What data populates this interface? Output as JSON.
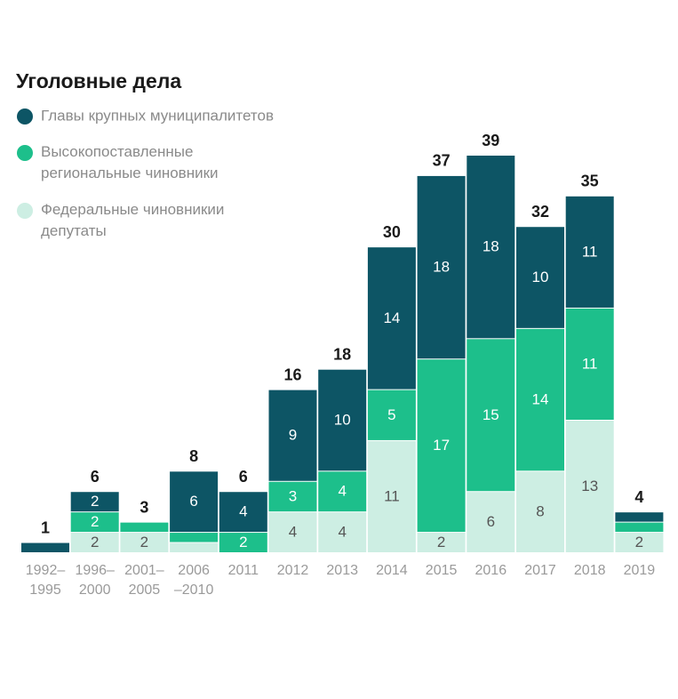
{
  "chart_data": {
    "type": "stacked_bar",
    "title": "Уголовные дела",
    "categories": [
      "1992–\n1995",
      "1996–\n2000",
      "2001–\n2005",
      "2006\n–2010",
      "2011",
      "2012",
      "2013",
      "2014",
      "2015",
      "2016",
      "2017",
      "2018",
      "2019"
    ],
    "series": [
      {
        "name": "Федеральные чиновникии\nдепутаты",
        "color": "#cdeee3",
        "values": [
          0,
          2,
          2,
          1,
          0,
          4,
          4,
          11,
          2,
          6,
          8,
          13,
          2
        ],
        "value_labels": [
          null,
          "2",
          "2",
          null,
          null,
          "4",
          "4",
          "11",
          "2",
          "6",
          "8",
          "13",
          "2"
        ]
      },
      {
        "name": "Высокопоставленные\nрегиональные чиновники",
        "color": "#1dbf8b",
        "values": [
          0,
          2,
          1,
          1,
          2,
          3,
          4,
          5,
          17,
          15,
          14,
          11,
          1
        ],
        "value_labels": [
          null,
          "2",
          null,
          null,
          "2",
          "3",
          "4",
          "5",
          "17",
          "15",
          "14",
          "11",
          null
        ]
      },
      {
        "name": "Главы крупных муниципалитетов",
        "color": "#0d5565",
        "values": [
          1,
          2,
          0,
          6,
          4,
          9,
          10,
          14,
          18,
          18,
          10,
          11,
          1
        ],
        "value_labels": [
          null,
          "2",
          null,
          "6",
          "4",
          "9",
          "10",
          "14",
          "18",
          "18",
          "10",
          "11",
          null
        ]
      }
    ],
    "totals": [
      1,
      6,
      3,
      8,
      6,
      16,
      18,
      30,
      37,
      39,
      32,
      35,
      4
    ]
  }
}
